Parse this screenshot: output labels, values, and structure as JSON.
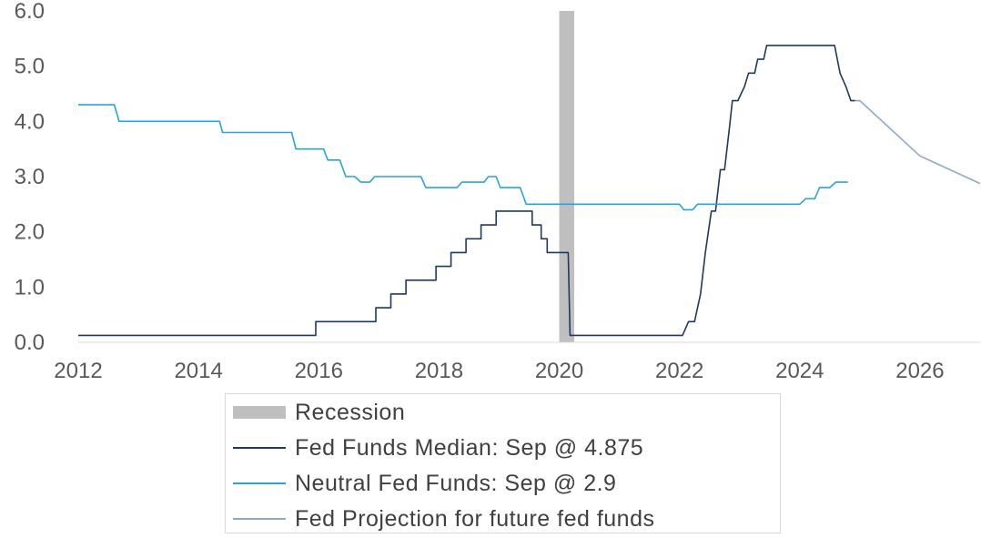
{
  "chart_data": {
    "type": "line",
    "title": "",
    "xlabel": "",
    "ylabel": "",
    "xlim": [
      2012,
      2027
    ],
    "ylim": [
      0,
      6
    ],
    "x_ticks": [
      "2012",
      "2014",
      "2016",
      "2018",
      "2020",
      "2022",
      "2024",
      "2026"
    ],
    "y_ticks": [
      "0.0",
      "1.0",
      "2.0",
      "3.0",
      "4.0",
      "5.0",
      "6.0"
    ],
    "grid": false,
    "legend_placement": "bottom-center",
    "recession": {
      "name": "Recession",
      "start": 2020.0,
      "end": 2020.25,
      "color": "#bfbfbf"
    },
    "series": [
      {
        "name": "Fed Funds Median: Sep @ 4.875",
        "color": "#1f3864",
        "step": true,
        "points": [
          [
            2012.0,
            0.125
          ],
          [
            2015.95,
            0.125
          ],
          [
            2015.95,
            0.375
          ],
          [
            2016.95,
            0.375
          ],
          [
            2016.95,
            0.625
          ],
          [
            2017.2,
            0.625
          ],
          [
            2017.2,
            0.875
          ],
          [
            2017.45,
            0.875
          ],
          [
            2017.45,
            1.125
          ],
          [
            2017.95,
            1.125
          ],
          [
            2017.95,
            1.375
          ],
          [
            2018.2,
            1.375
          ],
          [
            2018.2,
            1.625
          ],
          [
            2018.45,
            1.625
          ],
          [
            2018.45,
            1.875
          ],
          [
            2018.7,
            1.875
          ],
          [
            2018.7,
            2.125
          ],
          [
            2018.95,
            2.125
          ],
          [
            2018.95,
            2.375
          ],
          [
            2019.55,
            2.375
          ],
          [
            2019.55,
            2.125
          ],
          [
            2019.7,
            2.125
          ],
          [
            2019.7,
            1.875
          ],
          [
            2019.8,
            1.875
          ],
          [
            2019.8,
            1.625
          ],
          [
            2019.95,
            1.625
          ],
          [
            2020.15,
            1.625
          ],
          [
            2020.18,
            0.125
          ],
          [
            2022.05,
            0.125
          ],
          [
            2022.15,
            0.375
          ],
          [
            2022.25,
            0.375
          ],
          [
            2022.35,
            0.875
          ],
          [
            2022.43,
            1.625
          ],
          [
            2022.53,
            2.375
          ],
          [
            2022.6,
            2.375
          ],
          [
            2022.68,
            3.125
          ],
          [
            2022.75,
            3.125
          ],
          [
            2022.83,
            3.875
          ],
          [
            2022.88,
            4.375
          ],
          [
            2022.97,
            4.375
          ],
          [
            2023.08,
            4.625
          ],
          [
            2023.15,
            4.875
          ],
          [
            2023.25,
            4.875
          ],
          [
            2023.3,
            5.125
          ],
          [
            2023.4,
            5.125
          ],
          [
            2023.45,
            5.375
          ],
          [
            2024.5,
            5.375
          ],
          [
            2024.58,
            5.375
          ],
          [
            2024.67,
            4.875
          ],
          [
            2024.77,
            4.625
          ],
          [
            2024.85,
            4.375
          ],
          [
            2024.92,
            4.375
          ]
        ]
      },
      {
        "name": "Neutral Fed Funds: Sep @ 2.9",
        "color": "#2aa3d6",
        "step": true,
        "points": [
          [
            2012.0,
            4.3
          ],
          [
            2012.6,
            4.3
          ],
          [
            2012.68,
            4.0
          ],
          [
            2014.35,
            4.0
          ],
          [
            2014.4,
            3.8
          ],
          [
            2015.55,
            3.8
          ],
          [
            2015.62,
            3.5
          ],
          [
            2016.08,
            3.5
          ],
          [
            2016.15,
            3.3
          ],
          [
            2016.35,
            3.3
          ],
          [
            2016.45,
            3.0
          ],
          [
            2016.6,
            3.0
          ],
          [
            2016.7,
            2.9
          ],
          [
            2016.85,
            2.9
          ],
          [
            2016.93,
            3.0
          ],
          [
            2017.7,
            3.0
          ],
          [
            2017.78,
            2.8
          ],
          [
            2018.3,
            2.8
          ],
          [
            2018.38,
            2.9
          ],
          [
            2018.75,
            2.9
          ],
          [
            2018.82,
            3.0
          ],
          [
            2018.95,
            3.0
          ],
          [
            2019.02,
            2.8
          ],
          [
            2019.35,
            2.8
          ],
          [
            2019.45,
            2.5
          ],
          [
            2022.0,
            2.5
          ],
          [
            2022.07,
            2.4
          ],
          [
            2022.22,
            2.4
          ],
          [
            2022.3,
            2.5
          ],
          [
            2024.0,
            2.5
          ],
          [
            2024.1,
            2.6
          ],
          [
            2024.25,
            2.6
          ],
          [
            2024.33,
            2.8
          ],
          [
            2024.5,
            2.8
          ],
          [
            2024.6,
            2.9
          ],
          [
            2024.8,
            2.9
          ]
        ]
      },
      {
        "name": "Fed Projection for future fed funds",
        "color": "#8eaabf",
        "step": false,
        "points": [
          [
            2024.92,
            4.375
          ],
          [
            2025.0,
            4.375
          ],
          [
            2026.0,
            3.375
          ],
          [
            2027.0,
            2.875
          ]
        ]
      }
    ]
  }
}
